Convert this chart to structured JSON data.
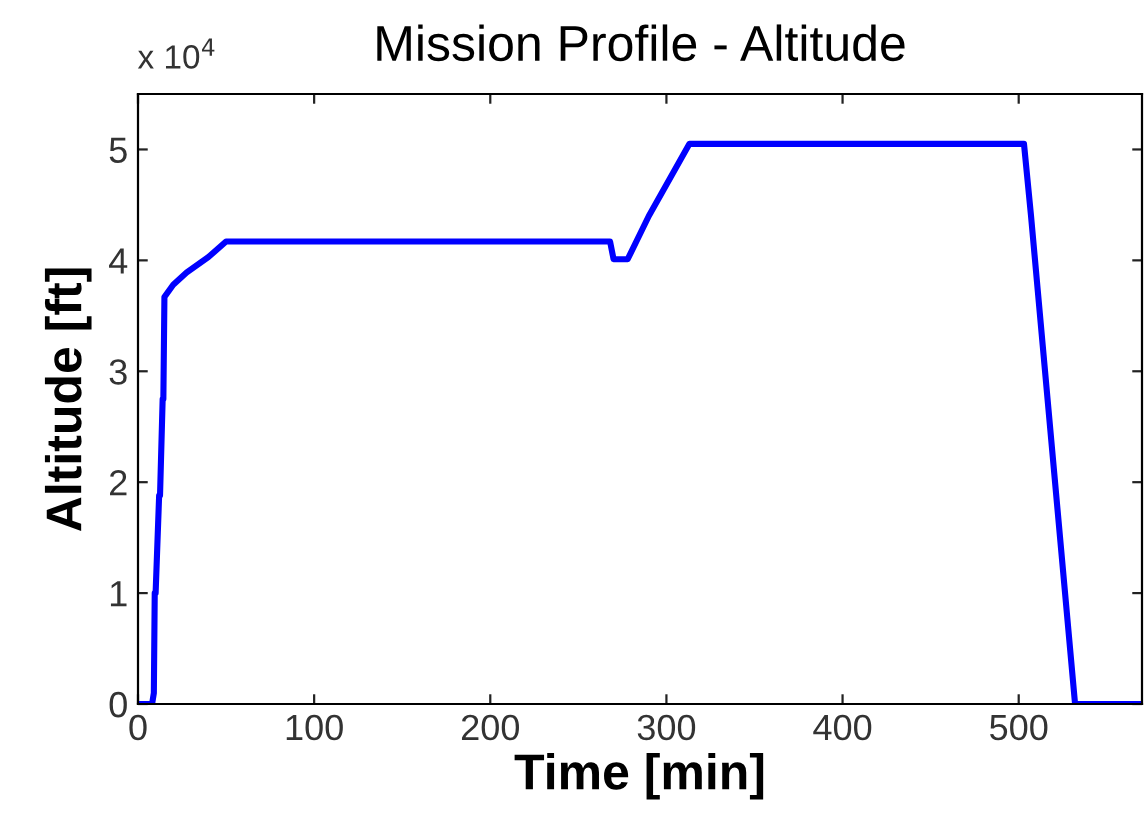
{
  "chart_data": {
    "type": "line",
    "title": "Mission Profile - Altitude",
    "xlabel": "Time [min]",
    "ylabel": "Altitude [ft]",
    "annotations": [
      "x 10$^{4}$"
    ],
    "x": [
      0,
      8,
      9,
      9.5,
      10,
      12,
      12.5,
      14,
      14.4,
      15,
      20,
      27.6,
      40,
      50,
      268,
      270,
      278,
      290,
      313,
      503,
      507,
      532,
      570
    ],
    "series": [
      {
        "color": "#0000ff",
        "values": [
          0,
          0,
          0.1,
          1.0,
          1.0,
          1.88,
          1.88,
          2.75,
          2.75,
          3.67,
          3.78,
          3.89,
          4.03,
          4.17,
          4.17,
          4.01,
          4.01,
          4.4,
          5.05,
          5.05,
          4.4,
          0,
          0
        ]
      }
    ],
    "xlim": [
      0,
      570
    ],
    "xticks": [
      0,
      100,
      200,
      300,
      400,
      500
    ],
    "ylim": [
      0,
      5.5
    ],
    "yticks": [
      0,
      1,
      2,
      3,
      4,
      5
    ],
    "grid": false,
    "legend": false,
    "marker": "none",
    "line_style": "solid"
  }
}
